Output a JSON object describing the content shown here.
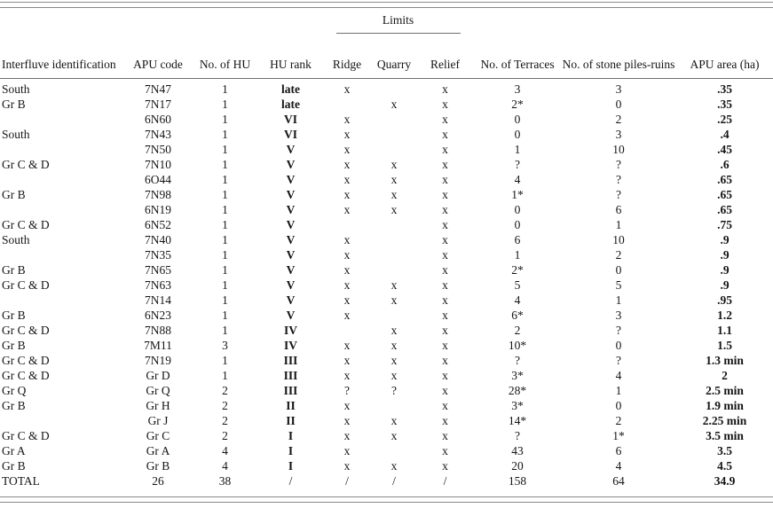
{
  "table": {
    "limits_group": {
      "label": "Limits"
    },
    "columns": [
      {
        "key": "interfluve",
        "label": "Interfluve identification",
        "bold": false,
        "align": "left"
      },
      {
        "key": "apu-code",
        "label": "APU code",
        "bold": false,
        "align": "center"
      },
      {
        "key": "no-of-hu",
        "label": "No. of HU",
        "bold": false,
        "align": "center"
      },
      {
        "key": "hu-rank",
        "label": "HU rank",
        "bold": true,
        "align": "center"
      },
      {
        "key": "ridge",
        "label": "Ridge",
        "bold": false,
        "align": "center"
      },
      {
        "key": "quarry",
        "label": "Quarry",
        "bold": false,
        "align": "center"
      },
      {
        "key": "relief",
        "label": "Relief",
        "bold": false,
        "align": "center"
      },
      {
        "key": "terraces",
        "label": "No. of Terraces",
        "bold": false,
        "align": "center"
      },
      {
        "key": "stone-piles",
        "label": "No. of stone piles-ruins",
        "bold": false,
        "align": "center"
      },
      {
        "key": "apu-area",
        "label": "APU area (ha)",
        "bold": true,
        "align": "center"
      }
    ],
    "rows": [
      [
        "South",
        "7N47",
        "1",
        "late",
        "x",
        "",
        "x",
        "3",
        "3",
        ".35"
      ],
      [
        "Gr B",
        "7N17",
        "1",
        "late",
        "",
        "x",
        "x",
        "2*",
        "0",
        ".35"
      ],
      [
        "",
        "6N60",
        "1",
        "VI",
        "x",
        "",
        "x",
        "0",
        "2",
        ".25"
      ],
      [
        "South",
        "7N43",
        "1",
        "VI",
        "x",
        "",
        "x",
        "0",
        "3",
        ".4"
      ],
      [
        "",
        "7N50",
        "1",
        "V",
        "x",
        "",
        "x",
        "1",
        "10",
        ".45"
      ],
      [
        "Gr C & D",
        "7N10",
        "1",
        "V",
        "x",
        "x",
        "x",
        "?",
        "?",
        ".6"
      ],
      [
        "",
        "6O44",
        "1",
        "V",
        "x",
        "x",
        "x",
        "4",
        "?",
        ".65"
      ],
      [
        "Gr B",
        "7N98",
        "1",
        "V",
        "x",
        "x",
        "x",
        "1*",
        "?",
        ".65"
      ],
      [
        "",
        "6N19",
        "1",
        "V",
        "x",
        "x",
        "x",
        "0",
        "6",
        ".65"
      ],
      [
        "Gr C & D",
        "6N52",
        "1",
        "V",
        "",
        "",
        "x",
        "0",
        "1",
        ".75"
      ],
      [
        "South",
        "7N40",
        "1",
        "V",
        "x",
        "",
        "x",
        "6",
        "10",
        ".9"
      ],
      [
        "",
        "7N35",
        "1",
        "V",
        "x",
        "",
        "x",
        "1",
        "2",
        ".9"
      ],
      [
        "Gr B",
        "7N65",
        "1",
        "V",
        "x",
        "",
        "x",
        "2*",
        "0",
        ".9"
      ],
      [
        "Gr C & D",
        "7N63",
        "1",
        "V",
        "x",
        "x",
        "x",
        "5",
        "5",
        ".9"
      ],
      [
        "",
        "7N14",
        "1",
        "V",
        "x",
        "x",
        "x",
        "4",
        "1",
        ".95"
      ],
      [
        "Gr B",
        "6N23",
        "1",
        "V",
        "x",
        "",
        "x",
        "6*",
        "3",
        "1.2"
      ],
      [
        "Gr C & D",
        "7N88",
        "1",
        "IV",
        "",
        "x",
        "x",
        "2",
        "?",
        "1.1"
      ],
      [
        "Gr B",
        "7M11",
        "3",
        "IV",
        "x",
        "x",
        "x",
        "10*",
        "0",
        "1.5"
      ],
      [
        "Gr C & D",
        "7N19",
        "1",
        "III",
        "x",
        "x",
        "x",
        "?",
        "?",
        "1.3 min"
      ],
      [
        "Gr C & D",
        "Gr D",
        "1",
        "III",
        "x",
        "x",
        "x",
        "3*",
        "4",
        "2"
      ],
      [
        "Gr Q",
        "Gr Q",
        "2",
        "III",
        "?",
        "?",
        "x",
        "28*",
        "1",
        "2.5 min"
      ],
      [
        "Gr B",
        "Gr H",
        "2",
        "II",
        "x",
        "",
        "x",
        "3*",
        "0",
        "1.9 min"
      ],
      [
        "",
        "Gr J",
        "2",
        "II",
        "x",
        "x",
        "x",
        "14*",
        "2",
        "2.25 min"
      ],
      [
        "Gr C & D",
        "Gr C",
        "2",
        "I",
        "x",
        "x",
        "x",
        "?",
        "1*",
        "3.5 min"
      ],
      [
        "Gr A",
        "Gr A",
        "4",
        "I",
        "x",
        "",
        "x",
        "43",
        "6",
        "3.5"
      ],
      [
        "Gr B",
        "Gr B",
        "4",
        "I",
        "x",
        "x",
        "x",
        "20",
        "4",
        "4.5"
      ]
    ],
    "total_row": {
      "cells": [
        "TOTAL",
        "26",
        "38",
        "/",
        "/",
        "/",
        "/",
        "158",
        "64",
        "34.9"
      ],
      "bold_indices": [
        9
      ]
    }
  }
}
